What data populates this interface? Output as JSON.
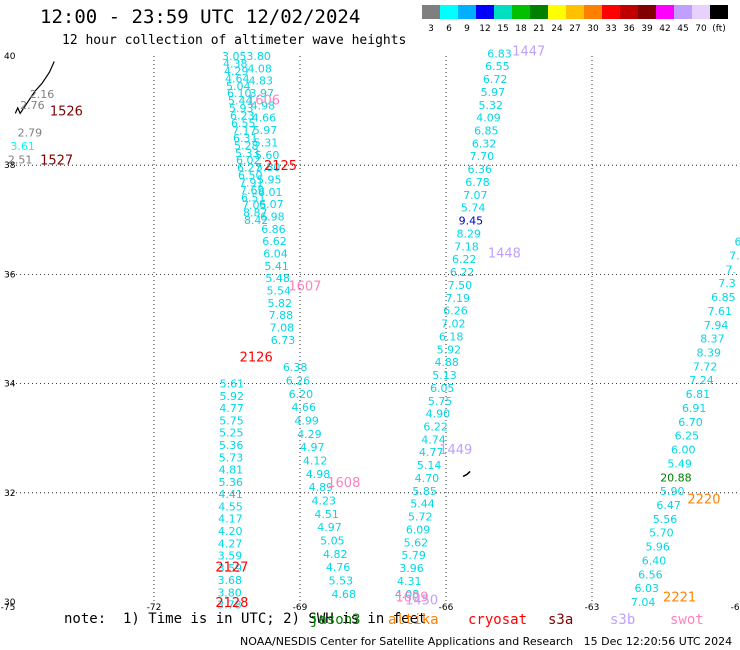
{
  "header": {
    "title": "12:00 - 23:59 UTC 12/02/2024",
    "subtitle": "12 hour collection of altimeter wave heights"
  },
  "color_scale": {
    "ticks": [
      "3",
      "6",
      "9",
      "12",
      "15",
      "18",
      "21",
      "24",
      "27",
      "30",
      "33",
      "36",
      "39",
      "42",
      "45",
      "70",
      "(ft)"
    ],
    "colors": [
      "#7f7f7f",
      "#00ffff",
      "#00b0ff",
      "#0000ff",
      "#00e0c0",
      "#00c000",
      "#008000",
      "#ffff00",
      "#ffc000",
      "#ff8000",
      "#ff0000",
      "#c00000",
      "#800000",
      "#ff00ff",
      "#c0a0ff",
      "#e8d0ff",
      "#000000"
    ]
  },
  "axes": {
    "x_ticks": [
      "-75",
      "-72",
      "-69",
      "-66",
      "-63",
      "-60"
    ],
    "y_ticks": [
      "40",
      "38",
      "36",
      "34",
      "32",
      "30"
    ]
  },
  "legend": {
    "note": "note:  1) Time is in UTC; 2) SWH is in feet",
    "items": [
      {
        "name": "jason3",
        "color": "#008000"
      },
      {
        "name": "altika",
        "color": "#ff8000"
      },
      {
        "name": "cryosat",
        "color": "#ff0000"
      },
      {
        "name": "s3a",
        "color": "#800000"
      },
      {
        "name": "s3b",
        "color": "#c0a0ff"
      },
      {
        "name": "swot",
        "color": "#ff80c0"
      }
    ]
  },
  "footer": "NOAA/NESDIS Center for Satellite Applications and Research   15 Dec 12:20:56 UTC 2024",
  "map_data": {
    "coast_label_values": [
      {
        "v": "2.16",
        "lon": -74.3,
        "lat": 39.3,
        "c": "#7f7f7f"
      },
      {
        "v": "2.76",
        "lon": -74.5,
        "lat": 39.1,
        "c": "#7f7f7f"
      },
      {
        "v": "2.79",
        "lon": -74.55,
        "lat": 38.6,
        "c": "#7f7f7f"
      },
      {
        "v": "3.61",
        "lon": -74.7,
        "lat": 38.35,
        "c": "#00ffff"
      },
      {
        "v": "2.51",
        "lon": -74.75,
        "lat": 38.1,
        "c": "#7f7f7f"
      }
    ],
    "time_labels": [
      {
        "t": "1526",
        "lon": -73.8,
        "lat": 39.0,
        "c": "#800000"
      },
      {
        "t": "1527",
        "lon": -74.0,
        "lat": 38.1,
        "c": "#800000"
      },
      {
        "t": "1606",
        "lon": -69.75,
        "lat": 39.2,
        "c": "#ff80c0"
      },
      {
        "t": "2125",
        "lon": -69.4,
        "lat": 38.0,
        "c": "#ff0000"
      },
      {
        "t": "1607",
        "lon": -68.9,
        "lat": 35.8,
        "c": "#ff80c0"
      },
      {
        "t": "2126",
        "lon": -69.9,
        "lat": 34.5,
        "c": "#ff0000"
      },
      {
        "t": "1608",
        "lon": -68.1,
        "lat": 32.2,
        "c": "#ff80c0"
      },
      {
        "t": "2127",
        "lon": -70.4,
        "lat": 30.65,
        "c": "#ff0000"
      },
      {
        "t": "2128",
        "lon": -70.4,
        "lat": 30.0,
        "c": "#ff0000"
      },
      {
        "t": "1609",
        "lon": -66.7,
        "lat": 30.1,
        "c": "#ff80c0"
      },
      {
        "t": "1447",
        "lon": -64.3,
        "lat": 40.1,
        "c": "#c0a0ff"
      },
      {
        "t": "1448",
        "lon": -64.8,
        "lat": 36.4,
        "c": "#c0a0ff"
      },
      {
        "t": "1449",
        "lon": -65.8,
        "lat": 32.8,
        "c": "#c0a0ff"
      },
      {
        "t": "1450",
        "lon": -66.5,
        "lat": 30.05,
        "c": "#c0a0ff"
      },
      {
        "t": "2220",
        "lon": -60.7,
        "lat": 31.9,
        "c": "#ff8000"
      },
      {
        "t": "2221",
        "lon": -61.2,
        "lat": 30.1,
        "c": "#ff8000"
      }
    ],
    "tracks": [
      {
        "name": "track-a",
        "lon0": -70.35,
        "lat0": 40.0,
        "lon1": -69.9,
        "lat1": 37.0,
        "values": [
          "3.05",
          "4.38",
          "4.29",
          "4.64",
          "5.04",
          "6.10",
          "5.44",
          "5.93",
          "6.23",
          "6.55",
          "7.17",
          "6.31",
          "5.28",
          "5.33",
          "6.02",
          "6.27",
          "6.50",
          "7.91",
          "7.69",
          "6.51",
          "7.05",
          "8.87",
          "8.42"
        ]
      },
      {
        "name": "track-b",
        "lon0": -69.85,
        "lat0": 40.0,
        "lon1": -69.35,
        "lat1": 34.8,
        "values": [
          "3.80",
          "4.08",
          "4.83",
          "3.97",
          "4.98",
          "4.66",
          "5.97",
          "5.31",
          "5.60",
          "5.80",
          "5.95",
          "6.01",
          "6.07",
          "6.98",
          "6.86",
          "6.62",
          "6.04",
          "5.41",
          "5.48",
          "5.54",
          "5.82",
          "7.88",
          "7.08",
          "6.73"
        ]
      },
      {
        "name": "track-c",
        "lon0": -70.4,
        "lat0": 34.0,
        "lon1": -70.45,
        "lat1": 29.95,
        "values": [
          "5.61",
          "5.92",
          "4.77",
          "5.75",
          "5.25",
          "5.36",
          "5.73",
          "4.81",
          "5.36",
          "4.41",
          "4.55",
          "4.17",
          "4.20",
          "4.27",
          "3.59",
          "3.59",
          "3.68",
          "3.80",
          "3.78"
        ]
      },
      {
        "name": "track-d",
        "lon0": -69.1,
        "lat0": 34.3,
        "lon1": -68.1,
        "lat1": 30.15,
        "values": [
          "6.38",
          "6.26",
          "6.20",
          "4.66",
          "4.99",
          "4.29",
          "4.97",
          "4.12",
          "4.98",
          "4.89",
          "4.23",
          "4.51",
          "4.97",
          "5.05",
          "4.82",
          "4.76",
          "5.53",
          "4.68"
        ]
      },
      {
        "name": "track-e",
        "lon0": -64.9,
        "lat0": 40.05,
        "lon1": -66.8,
        "lat1": 30.15,
        "values": [
          "6.83",
          "6.55",
          "6.72",
          "5.97",
          "5.32",
          "4.09",
          "6.85",
          "6.32",
          "7.70",
          "6.36",
          "6.78",
          "7.07",
          "5.74",
          "9.45",
          "8.29",
          "7.18",
          "6.22",
          "6.22",
          "7.50",
          "7.19",
          "6.26",
          "7.02",
          "6.18",
          "5.92",
          "4.88",
          "5.13",
          "6.05",
          "5.75",
          "4.90",
          "6.22",
          "4.74",
          "4.77",
          "5.14",
          "4.70",
          "5.85",
          "5.44",
          "5.72",
          "6.09",
          "5.62",
          "5.79",
          "3.96",
          "4.31",
          "4.08"
        ]
      },
      {
        "name": "track-f",
        "lon0": -60.0,
        "lat0": 36.6,
        "lon1": -61.95,
        "lat1": 30.0,
        "values": [
          "6",
          "7.",
          "7.",
          "7.3",
          "6.85",
          "7.61",
          "7.94",
          "8.37",
          "8.39",
          "7.72",
          "7.24",
          "6.81",
          "6.91",
          "6.70",
          "6.25",
          "6.00",
          "5.49",
          "20.88",
          "5.90",
          "6.47",
          "5.56",
          "5.70",
          "5.96",
          "6.40",
          "6.56",
          "6.03",
          "7.04"
        ]
      }
    ]
  }
}
